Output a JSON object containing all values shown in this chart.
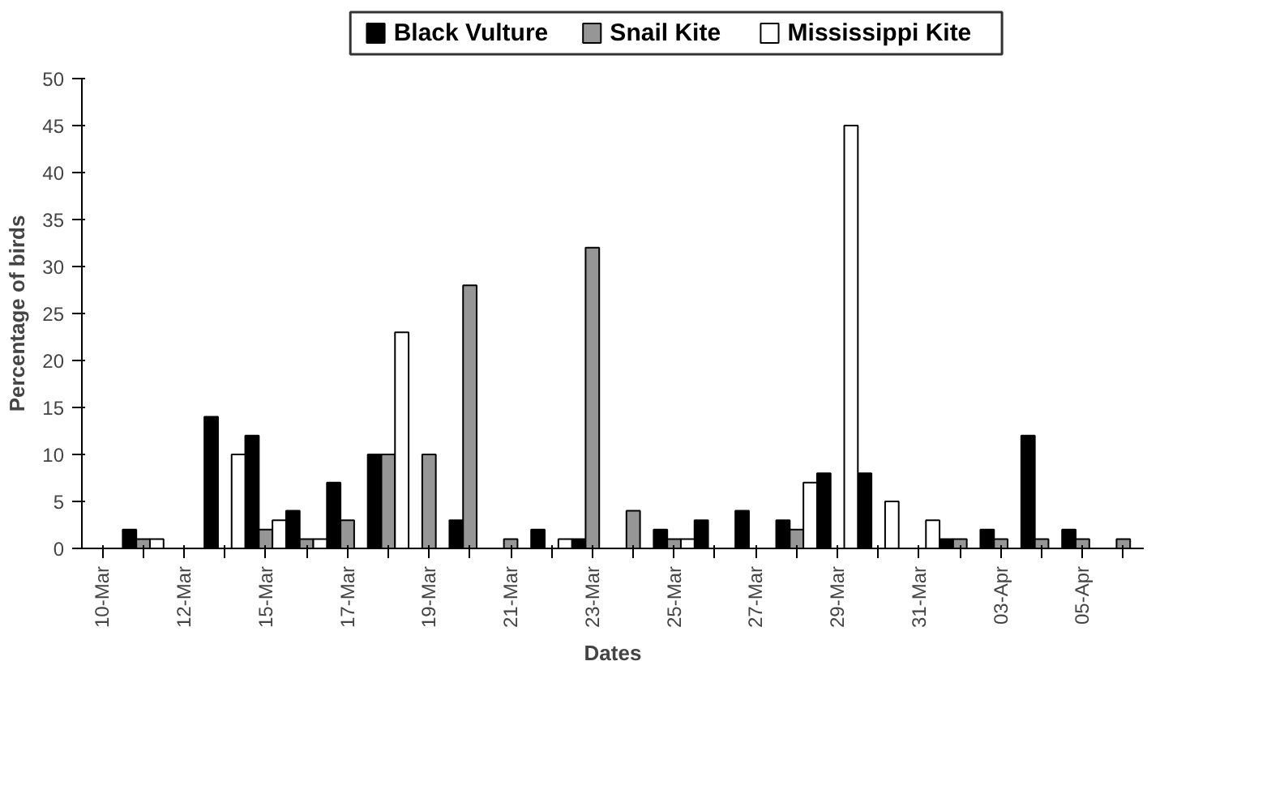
{
  "chart_data": {
    "type": "bar",
    "xlabel": "Dates",
    "ylabel": "Percentage of birds",
    "categories": [
      "10-Mar",
      null,
      "12-Mar",
      null,
      "15-Mar",
      null,
      "17-Mar",
      null,
      "19-Mar",
      null,
      "21-Mar",
      null,
      "23-Mar",
      null,
      "25-Mar",
      null,
      "27-Mar",
      null,
      "29-Mar",
      null,
      "31-Mar",
      null,
      "03-Apr",
      null,
      "05-Apr",
      null
    ],
    "series": [
      {
        "name": "Black Vulture",
        "color": "#000000",
        "values": [
          0,
          2,
          0,
          14,
          12,
          4,
          7,
          10,
          0,
          3,
          0,
          2,
          1,
          0,
          2,
          3,
          4,
          3,
          8,
          8,
          0,
          1,
          2,
          12,
          2,
          0
        ]
      },
      {
        "name": "Snail Kite",
        "color": "#969696",
        "values": [
          0,
          1,
          0,
          0,
          2,
          1,
          3,
          10,
          10,
          28,
          1,
          0,
          32,
          4,
          1,
          0,
          0,
          2,
          0,
          0,
          0,
          1,
          1,
          1,
          1,
          1
        ]
      },
      {
        "name": "Mississippi Kite",
        "color": "#ffffff",
        "values": [
          0,
          1,
          0,
          10,
          3,
          1,
          0,
          23,
          0,
          0,
          0,
          1,
          0,
          0,
          1,
          0,
          0,
          7,
          45,
          5,
          3,
          0,
          0,
          0,
          0,
          0
        ]
      }
    ],
    "ylim": [
      0,
      50
    ],
    "yticks": [
      0,
      5,
      10,
      15,
      20,
      25,
      30,
      35,
      40,
      45,
      50
    ],
    "grid": false,
    "legend": "top"
  }
}
